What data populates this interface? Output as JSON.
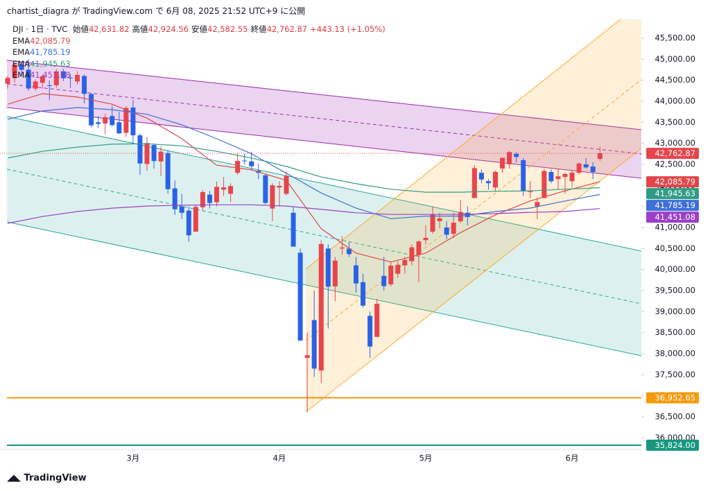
{
  "header": "chartist_diagra が TradingView.com で 6月 08, 2025 21:52 UTC+9 に公開",
  "footer": "TradingView",
  "chart_data": {
    "type": "candlestick",
    "symbol": "DJI · 1日 · TVC",
    "ohlc_legend": [
      {
        "label": "始値",
        "value": "42,631.82"
      },
      {
        "label": "高値",
        "value": "42,924.56"
      },
      {
        "label": "安値",
        "value": "42,582.55"
      },
      {
        "label": "終値",
        "value": "42,762.87"
      }
    ],
    "change": "+443.13 (+1.05%)",
    "categories": [
      null,
      null,
      null,
      null,
      null,
      null,
      null,
      null,
      null,
      null,
      null,
      null,
      null,
      null,
      null,
      null,
      null,
      null,
      "3月",
      null,
      null,
      null,
      null,
      null,
      null,
      null,
      null,
      null,
      null,
      null,
      null,
      null,
      null,
      null,
      null,
      null,
      null,
      null,
      null,
      "4月",
      null,
      null,
      null,
      null,
      null,
      null,
      null,
      null,
      null,
      null,
      null,
      null,
      null,
      null,
      null,
      null,
      null,
      null,
      null,
      null,
      "5月",
      null,
      null,
      null,
      null,
      null,
      null,
      null,
      null,
      null,
      null,
      null,
      null,
      null,
      null,
      null,
      null,
      null,
      null,
      null,
      null,
      "6月",
      null,
      null,
      null,
      null
    ],
    "open": [
      44420,
      44550,
      44870,
      44750,
      44300,
      44440,
      44380,
      44380,
      44710,
      44560,
      44470,
      44600,
      44170,
      43500,
      43470,
      43650,
      43500,
      43250,
      43850,
      43190,
      42510,
      42960,
      42570,
      42770,
      41930,
      41500,
      41400,
      40900,
      41480,
      41780,
      41600,
      41900,
      41800,
      42300,
      42590,
      42570,
      42350,
      42240,
      41450,
      41950,
      41800,
      41350,
      40400,
      37900,
      38800,
      37600,
      40500,
      39600,
      40500,
      40500,
      40100,
      39700,
      38900,
      38400,
      39850,
      39650,
      39900,
      40100,
      40200,
      40350,
      40700,
      40900,
      41150,
      41000,
      40850,
      41150,
      41350,
      41700,
      42300,
      42100,
      41950,
      42400,
      42500,
      42750,
      42600,
      41850,
      41500,
      41700,
      42320,
      42150,
      42200,
      42100,
      42300,
      42500,
      42450,
      42631.82
    ],
    "high": [
      44600,
      44900,
      44930,
      45000,
      44520,
      44640,
      44490,
      44760,
      44770,
      44650,
      44710,
      44640,
      44200,
      43650,
      43700,
      43900,
      43750,
      43880,
      44030,
      43230,
      43150,
      43000,
      42930,
      42830,
      42120,
      41800,
      41500,
      41530,
      41890,
      41870,
      42090,
      42200,
      42050,
      42770,
      42750,
      42800,
      42520,
      42280,
      42050,
      42100,
      42330,
      41500,
      40500,
      38500,
      39500,
      40700,
      40600,
      40300,
      40800,
      40650,
      40300,
      39900,
      39000,
      39300,
      40300,
      40200,
      40200,
      40300,
      40600,
      40700,
      41050,
      41500,
      41350,
      41150,
      41350,
      41650,
      41500,
      42480,
      42380,
      42150,
      42350,
      42660,
      42820,
      42800,
      42650,
      42100,
      41700,
      42400,
      42380,
      42400,
      42300,
      42350,
      42550,
      42650,
      42550,
      42924.56
    ],
    "low": [
      44300,
      44450,
      44600,
      44250,
      44250,
      44300,
      44030,
      44320,
      44480,
      44320,
      44400,
      43950,
      43380,
      43360,
      43220,
      43400,
      43220,
      43150,
      42980,
      42250,
      42350,
      42400,
      42220,
      41800,
      41300,
      41200,
      40660,
      40900,
      41400,
      41450,
      41500,
      41750,
      41600,
      42250,
      42500,
      42350,
      42150,
      41550,
      41150,
      41500,
      41760,
      40550,
      38300,
      36610,
      37450,
      37300,
      38600,
      39250,
      40350,
      40300,
      39450,
      39100,
      37900,
      38400,
      39500,
      39600,
      39800,
      39900,
      40100,
      39700,
      40600,
      40850,
      40980,
      40720,
      40750,
      41100,
      41050,
      41700,
      42050,
      41900,
      41850,
      42300,
      42400,
      42550,
      41750,
      41700,
      41200,
      41700,
      42050,
      41900,
      41800,
      41950,
      42250,
      42400,
      42150,
      42582.55
    ],
    "close": [
      44556,
      44873,
      44747,
      44303,
      44470,
      44593,
      44368,
      44711,
      44546,
      44556,
      44627,
      44177,
      43428,
      43461,
      43621,
      43433,
      43239,
      43841,
      43191,
      42521,
      43007,
      42579,
      42802,
      41912,
      41433,
      41350,
      40814,
      41489,
      41842,
      41582,
      41965,
      41953,
      41985,
      42583,
      42587,
      42455,
      42300,
      41584,
      42002,
      41990,
      42226,
      40545,
      38314,
      37966,
      37646,
      40608,
      39594,
      40213,
      40525,
      40368,
      39669,
      39142,
      38170,
      39187,
      39607,
      40093,
      40114,
      40228,
      40528,
      40669,
      40753,
      41317,
      41219,
      40829,
      41114,
      41368,
      41249,
      42410,
      42141,
      42052,
      42323,
      42655,
      42792,
      42677,
      41860,
      41859,
      41603,
      42343,
      42099,
      42216,
      42270,
      42306,
      42520,
      42428,
      42320,
      42762.87
    ],
    "up_color": "#e8444c",
    "down_color": "#2a62e6",
    "last_price_label": "42,762.87",
    "emas": [
      {
        "name": "EMA",
        "color": "#e0464a",
        "last_label": "42,085.79",
        "x": [
          0,
          5,
          10,
          15,
          20,
          25,
          30,
          35,
          40,
          45,
          50,
          55,
          60,
          65,
          70,
          75,
          80,
          85
        ],
        "values": [
          43930,
          44180,
          44100,
          43930,
          43600,
          43110,
          42480,
          42370,
          42120,
          40970,
          40390,
          40180,
          40390,
          40880,
          41300,
          41630,
          41870,
          42085.79
        ]
      },
      {
        "name": "EMA",
        "color": "#3f6fd8",
        "last_label": "41,785.19",
        "x": [
          0,
          5,
          10,
          15,
          20,
          25,
          30,
          35,
          40,
          45,
          50,
          55,
          60,
          65,
          70,
          75,
          80,
          85
        ],
        "values": [
          43570,
          43770,
          43850,
          43800,
          43690,
          43440,
          43110,
          42750,
          42290,
          41820,
          41460,
          41210,
          41270,
          41270,
          41380,
          41460,
          41630,
          41785.19
        ]
      },
      {
        "name": "EMA",
        "color": "#2e9c83",
        "last_label": "41,945.63",
        "x": [
          0,
          5,
          10,
          15,
          20,
          25,
          30,
          35,
          40,
          45,
          50,
          55,
          60,
          65,
          70,
          75,
          80,
          85
        ],
        "values": [
          42650,
          42810,
          42910,
          42980,
          42990,
          42940,
          42810,
          42650,
          42450,
          42200,
          42040,
          41910,
          41840,
          41840,
          41860,
          41870,
          41910,
          41945.63
        ]
      },
      {
        "name": "EMA",
        "color": "#9b3fc9",
        "last_label": "41,451.08",
        "x": [
          0,
          5,
          10,
          15,
          20,
          25,
          30,
          35,
          40,
          45,
          50,
          55,
          60,
          65,
          70,
          75,
          80,
          85
        ],
        "values": [
          41100,
          41260,
          41380,
          41460,
          41510,
          41530,
          41540,
          41540,
          41510,
          41430,
          41350,
          41310,
          41310,
          41310,
          41330,
          41360,
          41380,
          41451.08
        ]
      }
    ],
    "hlines": [
      {
        "value": 36952.65,
        "label": "36,952.65",
        "color": "#f59a0b"
      },
      {
        "value": 35824,
        "label": "35,824.00",
        "color": "#16977f"
      }
    ],
    "ylim": [
      35726,
      45945
    ],
    "yticks": [
      {
        "value": 36000,
        "label": "36,000.00"
      },
      {
        "value": 36500,
        "label": "36,500.00"
      },
      {
        "value": 37000,
        "label": "37,000.00"
      },
      {
        "value": 37500,
        "label": "37,500.00"
      },
      {
        "value": 38000,
        "label": "38,000.00"
      },
      {
        "value": 38500,
        "label": "38,500.00"
      },
      {
        "value": 39000,
        "label": "39,000.00"
      },
      {
        "value": 39500,
        "label": "39,500.00"
      },
      {
        "value": 40000,
        "label": "40,000.00"
      },
      {
        "value": 40500,
        "label": "40,500.00"
      },
      {
        "value": 41000,
        "label": "41,000.00"
      },
      {
        "value": 41500,
        "label": "41,500.00"
      },
      {
        "value": 42000,
        "label": "42,000.00"
      },
      {
        "value": 42500,
        "label": "42,500.00"
      },
      {
        "value": 43000,
        "label": "43,000.00"
      },
      {
        "value": 43500,
        "label": "43,500.00"
      },
      {
        "value": 44000,
        "label": "44,000.00"
      },
      {
        "value": 44500,
        "label": "44,500.00"
      },
      {
        "value": 45000,
        "label": "45,000.00"
      },
      {
        "value": 45500,
        "label": "45,500.00"
      }
    ],
    "grid": false
  }
}
